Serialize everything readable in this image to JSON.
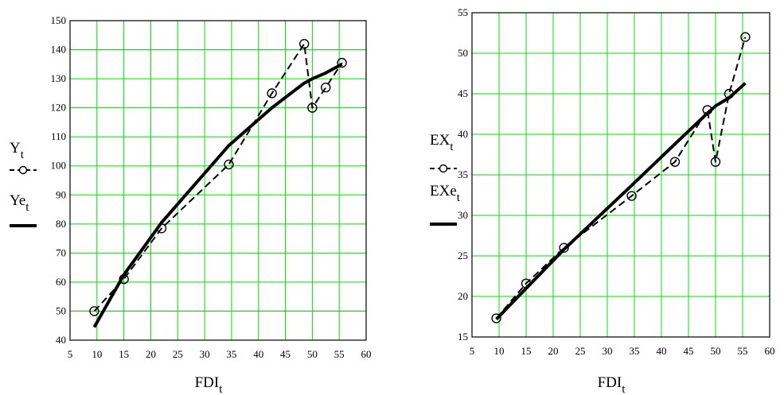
{
  "chart_data": [
    {
      "type": "line",
      "xlabel": "FDI",
      "xlabel_sub": "t",
      "xlim": [
        5,
        60
      ],
      "ylim": [
        40,
        150
      ],
      "xticks": [
        5,
        10,
        15,
        20,
        25,
        30,
        35,
        40,
        45,
        50,
        55,
        60
      ],
      "yticks": [
        40,
        50,
        60,
        70,
        80,
        90,
        100,
        110,
        120,
        130,
        140,
        150
      ],
      "grid": true,
      "grid_color": "#00e000",
      "legend_placement": "left",
      "series": [
        {
          "name": "Y",
          "name_sub": "t",
          "style": "dashed-circles",
          "x": [
            9.5,
            15,
            22,
            34.5,
            42.5,
            48.5,
            50,
            52.5,
            55.5
          ],
          "y": [
            50,
            61,
            78.5,
            100.5,
            125,
            142,
            120,
            127,
            135.5
          ]
        },
        {
          "name": "Ye",
          "name_sub": "t",
          "style": "solid-thick",
          "x": [
            9.5,
            15,
            22,
            34.5,
            42.5,
            48.5,
            50,
            52.5,
            55.5
          ],
          "y": [
            44.5,
            62.5,
            80.5,
            107,
            120,
            128.5,
            130,
            132,
            135
          ]
        }
      ]
    },
    {
      "type": "line",
      "xlabel": "FDI",
      "xlabel_sub": "t",
      "xlim": [
        5,
        60
      ],
      "ylim": [
        15,
        55
      ],
      "xticks": [
        5,
        10,
        15,
        20,
        25,
        30,
        35,
        40,
        45,
        50,
        55,
        60
      ],
      "yticks": [
        15,
        20,
        25,
        30,
        35,
        40,
        45,
        50,
        55
      ],
      "grid": true,
      "grid_color": "#00e000",
      "legend_placement": "left",
      "series": [
        {
          "name": "EX",
          "name_sub": "t",
          "style": "dashed-circles",
          "x": [
            9.5,
            15,
            22,
            34.5,
            42.5,
            48.5,
            50,
            52.5,
            55.5
          ],
          "y": [
            17.3,
            21.6,
            26,
            32.4,
            36.6,
            43,
            36.6,
            45,
            52
          ]
        },
        {
          "name": "EXe",
          "name_sub": "t",
          "style": "solid-thick",
          "x": [
            9.5,
            15,
            22,
            34.5,
            42.5,
            48.5,
            50,
            52.5,
            55.5
          ],
          "y": [
            17.2,
            21,
            25.8,
            33.7,
            38.8,
            42.6,
            43.5,
            44.5,
            46.3
          ]
        }
      ]
    }
  ]
}
